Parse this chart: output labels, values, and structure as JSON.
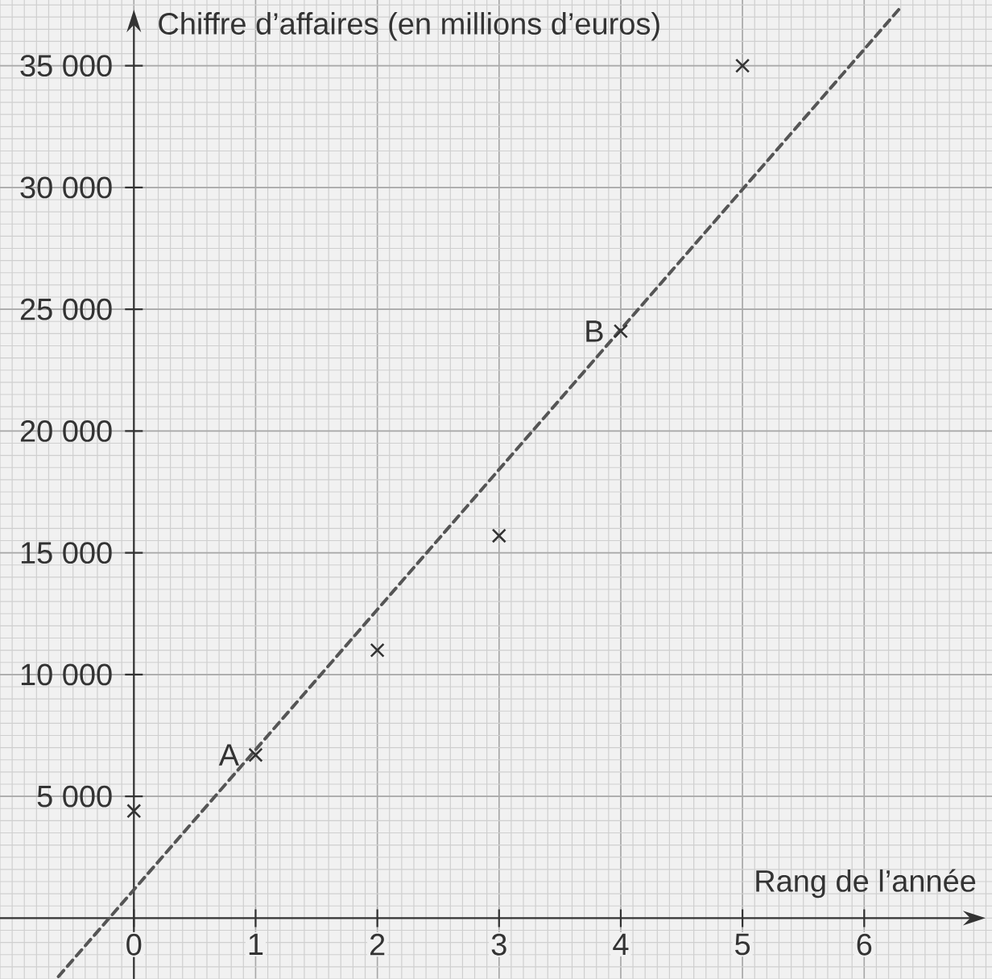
{
  "chart_data": {
    "type": "scatter",
    "xlabel": "Rang de l’année",
    "ylabel": "Chiffre d’affaires (en millions d’euros)",
    "series": [
      {
        "type": "scatter",
        "color": "#333333",
        "marker": "cross",
        "x": [
          0,
          1,
          2,
          3,
          4,
          5
        ],
        "values": [
          4400,
          6700,
          11000,
          15700,
          24100,
          35000
        ]
      },
      {
        "type": "line",
        "color": "#555555",
        "line_style": "dashed",
        "marker": "none",
        "x": [
          -0.62,
          6.3
        ],
        "values": [
          -2400,
          37400
        ]
      }
    ],
    "annotations": [
      {
        "text": "A",
        "x": 1,
        "y": 6700
      },
      {
        "text": "B",
        "x": 4,
        "y": 24100
      }
    ],
    "xlim": [
      -1.1,
      7.05
    ],
    "ylim": [
      -2500,
      37700
    ],
    "xticks": [
      0,
      1,
      2,
      3,
      4,
      5,
      6
    ],
    "yticks": [
      {
        "value": 5000,
        "label": "5 000"
      },
      {
        "value": 10000,
        "label": "10 000"
      },
      {
        "value": 15000,
        "label": "15 000"
      },
      {
        "value": 20000,
        "label": "20 000"
      },
      {
        "value": 25000,
        "label": "25 000"
      },
      {
        "value": 30000,
        "label": "30 000"
      },
      {
        "value": 35000,
        "label": "35 000"
      }
    ],
    "grid": true
  }
}
